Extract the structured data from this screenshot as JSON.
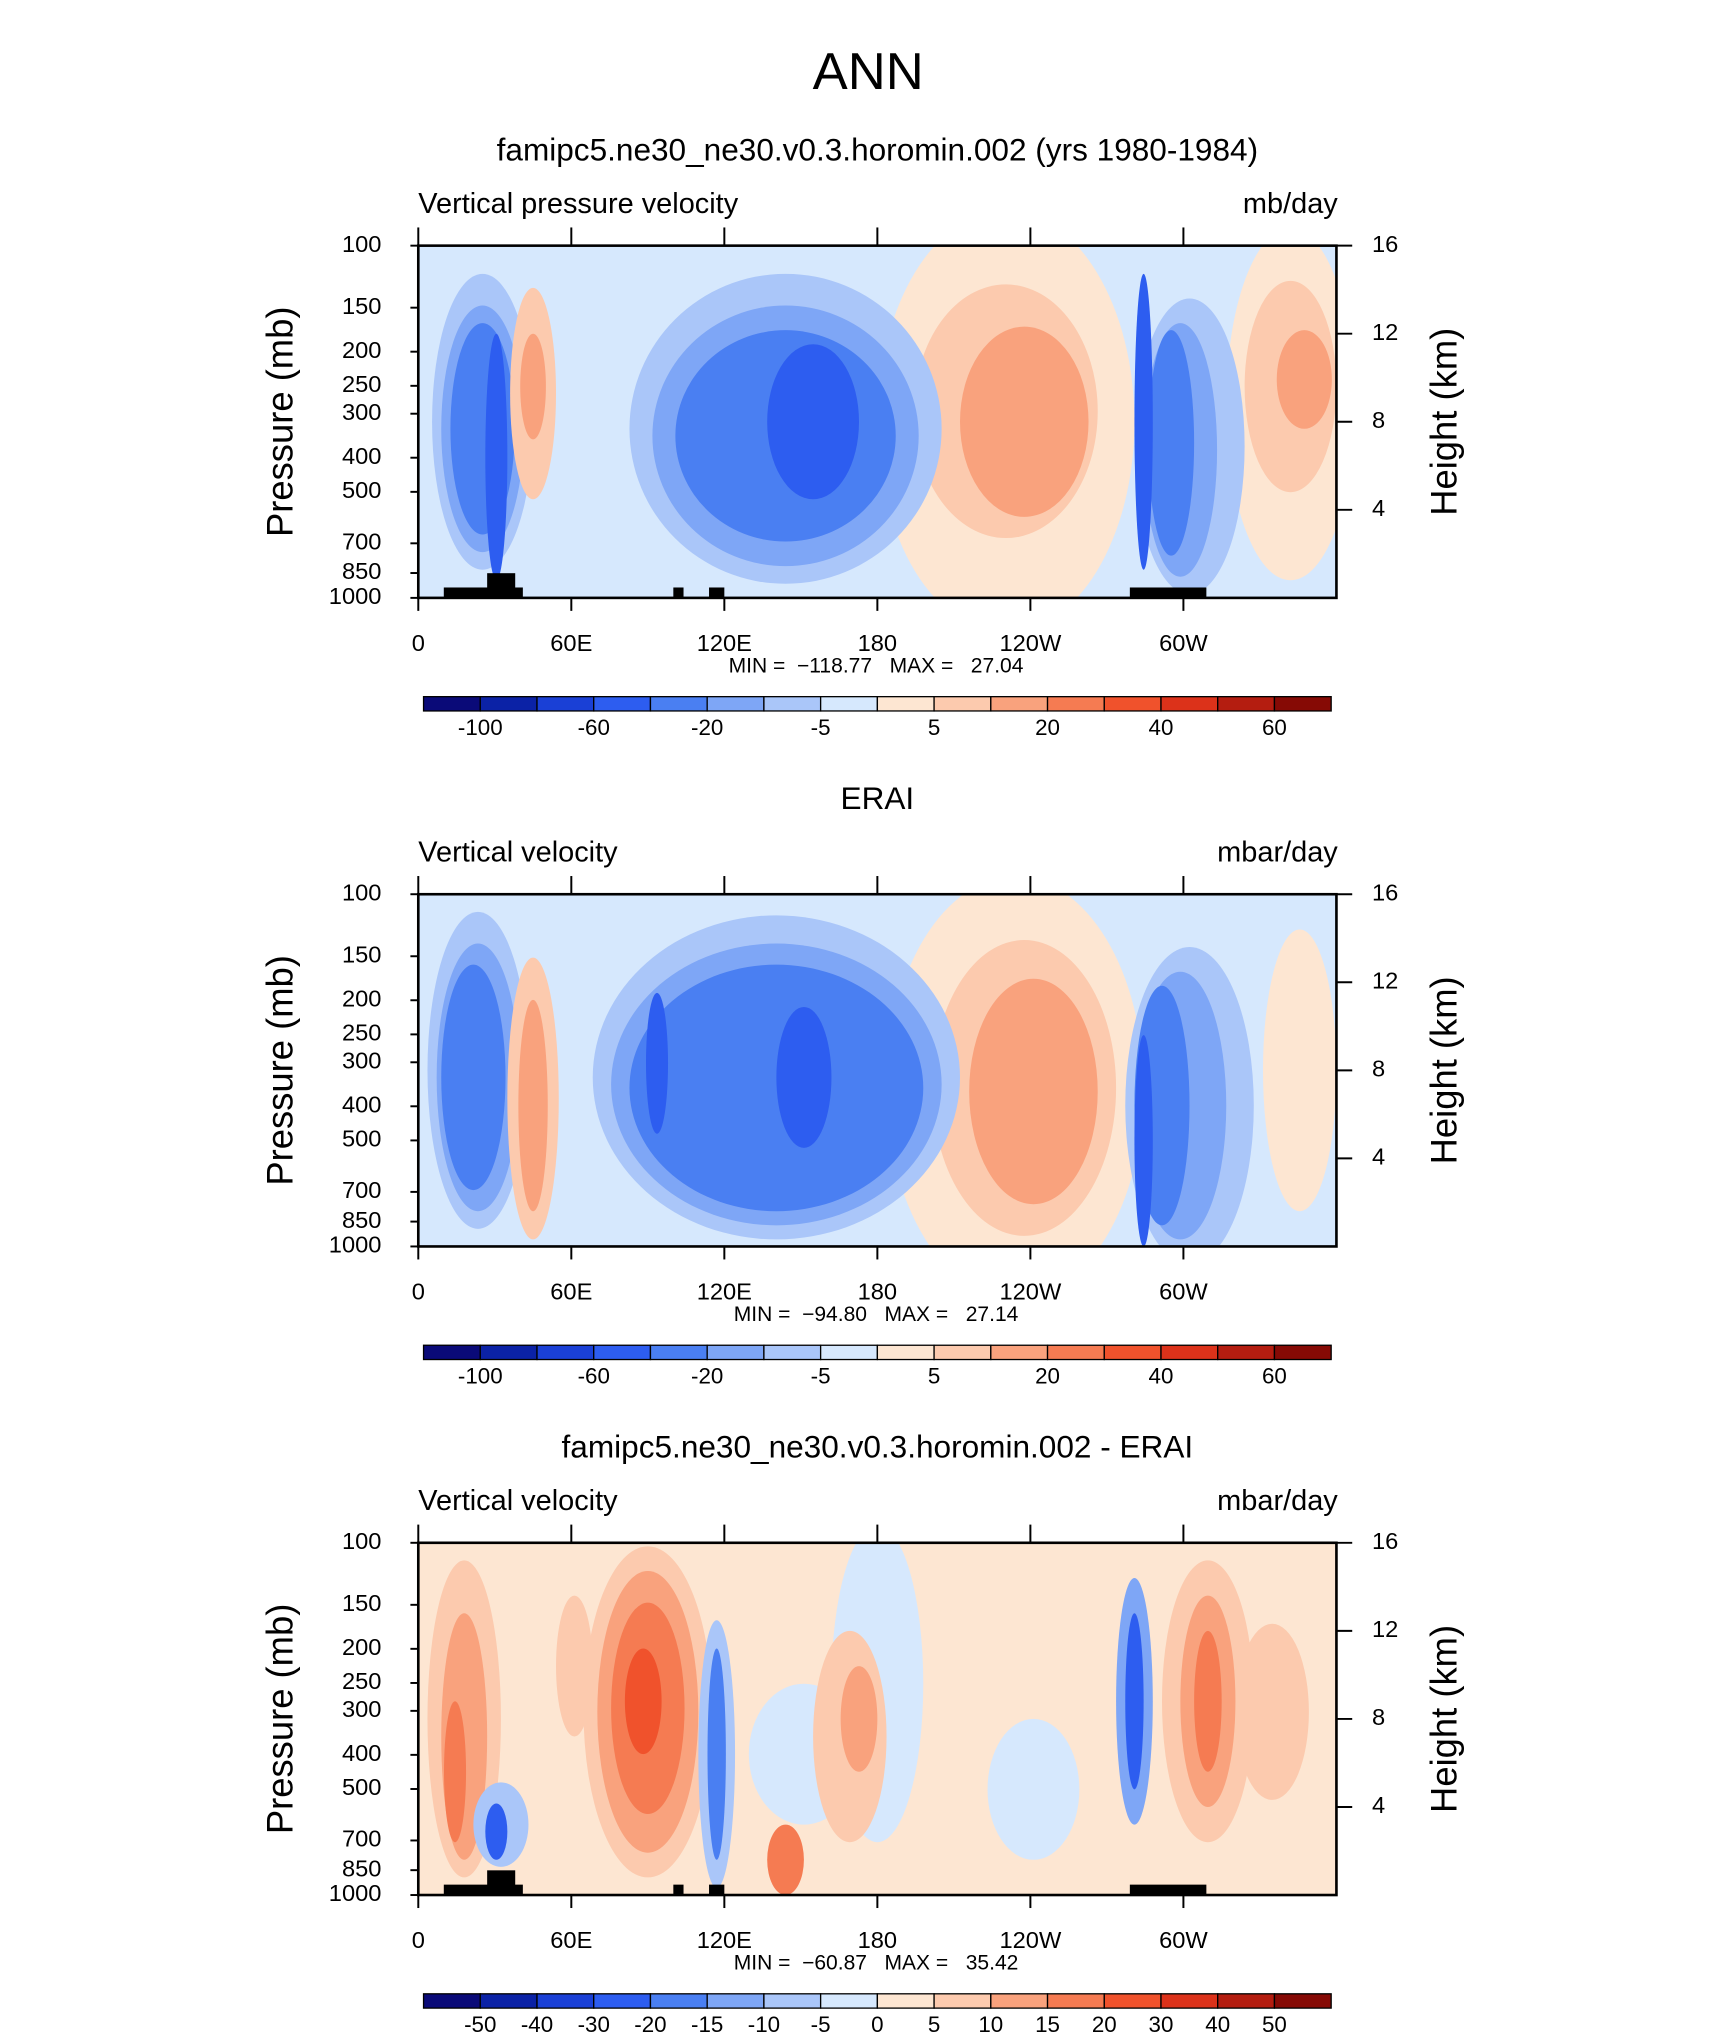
{
  "title": "ANN",
  "chart_data": [
    {
      "type": "contour",
      "title": "famipc5.ne30_ne30.v0.3.horomin.002 (yrs 1980-1984)",
      "left_label": "Vertical pressure velocity",
      "right_label": "mb/day",
      "ylabel": "Pressure (mb)",
      "y2label": "Height (km)",
      "xlim": [
        0,
        360
      ],
      "xticks": [
        0,
        {
          "value": 60,
          "label": "60E"
        },
        {
          "value": 120,
          "label": "120E"
        },
        180,
        {
          "value": 240,
          "label": "120W"
        },
        {
          "value": 300,
          "label": "60W"
        }
      ],
      "ylim": [
        1000,
        100
      ],
      "log_y": true,
      "yticks": [
        100,
        150,
        200,
        250,
        300,
        400,
        500,
        700,
        850,
        1000
      ],
      "y2lim": [
        0,
        16
      ],
      "y2ticks": [
        4,
        8,
        12,
        16
      ],
      "stats": "MIN =  −118.77   MAX =   27.04",
      "colors": [
        "#0a0a78",
        "#0b22a6",
        "#1a40d6",
        "#2d5df0",
        "#4a7ff2",
        "#7ea6f6",
        "#aac6f9",
        "#d6e8fd",
        "#fde6d2",
        "#fccaae",
        "#f9a27d",
        "#f57b52",
        "#f0522c",
        "#dc321a",
        "#b41d10",
        "#860a05"
      ],
      "colorbar_labels": [
        -100,
        null,
        -60,
        null,
        -20,
        null,
        -5,
        null,
        5,
        null,
        20,
        null,
        40,
        null,
        60
      ]
    },
    {
      "type": "contour",
      "title": "ERAI",
      "left_label": "Vertical velocity",
      "right_label": "mbar/day",
      "ylabel": "Pressure (mb)",
      "y2label": "Height (km)",
      "xlim": [
        0,
        360
      ],
      "xticks": [
        0,
        {
          "value": 60,
          "label": "60E"
        },
        {
          "value": 120,
          "label": "120E"
        },
        180,
        {
          "value": 240,
          "label": "120W"
        },
        {
          "value": 300,
          "label": "60W"
        }
      ],
      "ylim": [
        1000,
        100
      ],
      "log_y": true,
      "yticks": [
        100,
        150,
        200,
        250,
        300,
        400,
        500,
        700,
        850,
        1000
      ],
      "y2lim": [
        0,
        16
      ],
      "y2ticks": [
        4,
        8,
        12,
        16
      ],
      "stats": "MIN =  −94.80   MAX =   27.14",
      "colors": [
        "#0a0a78",
        "#0b22a6",
        "#1a40d6",
        "#2d5df0",
        "#4a7ff2",
        "#7ea6f6",
        "#aac6f9",
        "#d6e8fd",
        "#fde6d2",
        "#fccaae",
        "#f9a27d",
        "#f57b52",
        "#f0522c",
        "#dc321a",
        "#b41d10",
        "#860a05"
      ],
      "colorbar_labels": [
        -100,
        null,
        -60,
        null,
        -20,
        null,
        -5,
        null,
        5,
        null,
        20,
        null,
        40,
        null,
        60
      ]
    },
    {
      "type": "contour",
      "title": "famipc5.ne30_ne30.v0.3.horomin.002 - ERAI",
      "left_label": "Vertical velocity",
      "right_label": "mbar/day",
      "ylabel": "Pressure (mb)",
      "y2label": "Height (km)",
      "xlim": [
        0,
        360
      ],
      "xticks": [
        0,
        {
          "value": 60,
          "label": "60E"
        },
        {
          "value": 120,
          "label": "120E"
        },
        180,
        {
          "value": 240,
          "label": "120W"
        },
        {
          "value": 300,
          "label": "60W"
        }
      ],
      "ylim": [
        1000,
        100
      ],
      "log_y": true,
      "yticks": [
        100,
        150,
        200,
        250,
        300,
        400,
        500,
        700,
        850,
        1000
      ],
      "y2lim": [
        0,
        16
      ],
      "y2ticks": [
        4,
        8,
        12,
        16
      ],
      "stats": "MIN =  −60.87   MAX =   35.42",
      "colors": [
        "#0a0a78",
        "#0b22a6",
        "#1a40d6",
        "#2d5df0",
        "#4a7ff2",
        "#7ea6f6",
        "#aac6f9",
        "#d6e8fd",
        "#fde6d2",
        "#fccaae",
        "#f9a27d",
        "#f57b52",
        "#f0522c",
        "#dc321a",
        "#b41d10",
        "#860a05"
      ],
      "colorbar_labels": [
        -50,
        -40,
        -30,
        -20,
        -15,
        -10,
        -5,
        0,
        5,
        10,
        15,
        20,
        30,
        40,
        50
      ]
    }
  ]
}
